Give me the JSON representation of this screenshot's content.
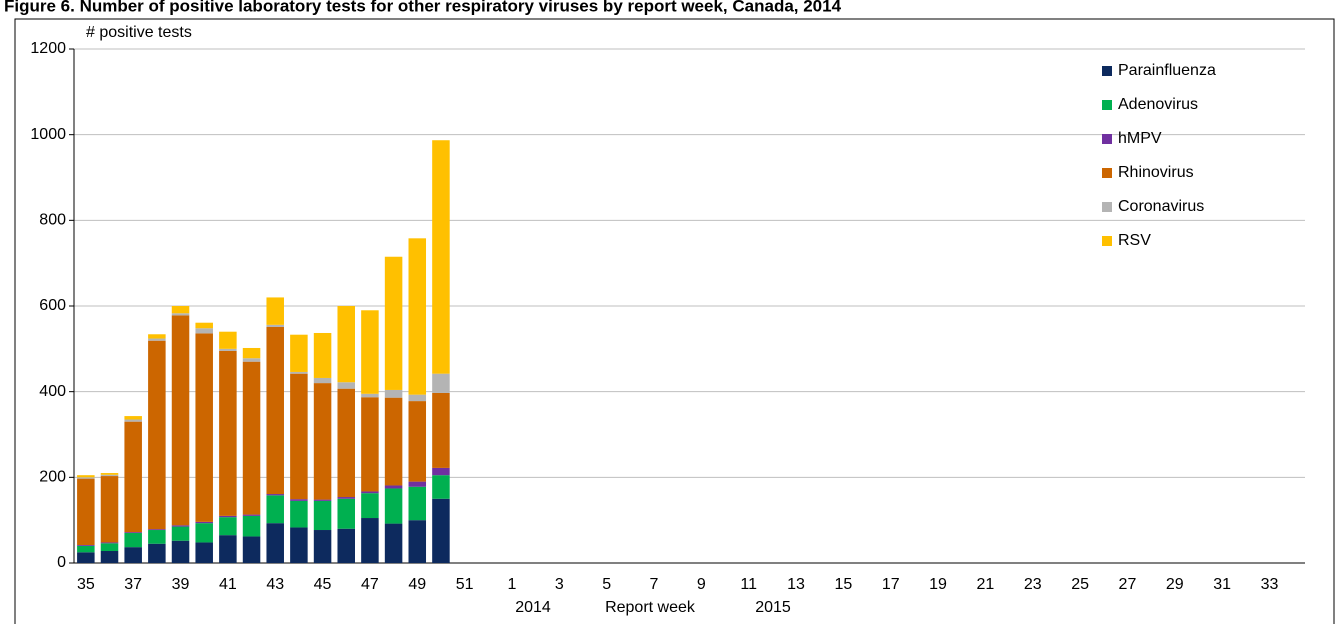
{
  "chart_data": {
    "type": "stacked-bar",
    "title": "Figure 6. Number of positive laboratory tests for other respiratory viruses by report week, Canada, 2014",
    "y_label": "# positive tests",
    "x_label": "Report week",
    "x_periods": [
      "2014",
      "2015"
    ],
    "categories": [
      "35",
      null,
      "37",
      null,
      "39",
      null,
      "41",
      null,
      "43",
      null,
      "45",
      null,
      "47",
      null,
      "49",
      null,
      "51",
      null,
      "1",
      null,
      "3",
      null,
      "5",
      null,
      "7",
      null,
      "9",
      null,
      "11",
      null,
      "13",
      null,
      "15",
      null,
      "17",
      null,
      "19",
      null,
      "21",
      null,
      "23",
      null,
      "25",
      null,
      "27",
      null,
      "29",
      null,
      "31",
      null,
      "33",
      null
    ],
    "series": [
      {
        "name": "Parainfluenza",
        "color": "#0d2a5e",
        "values": [
          25,
          28,
          37,
          45,
          52,
          48,
          65,
          62,
          93,
          83,
          77,
          80,
          105,
          92,
          100,
          150,
          null,
          null,
          null,
          null,
          null,
          null,
          null,
          null,
          null,
          null,
          null,
          null,
          null,
          null,
          null,
          null,
          null,
          null,
          null,
          null,
          null,
          null,
          null,
          null,
          null,
          null,
          null,
          null,
          null,
          null,
          null,
          null,
          null,
          null,
          null,
          null
        ]
      },
      {
        "name": "Adenovirus",
        "color": "#00b050",
        "values": [
          15,
          18,
          33,
          32,
          33,
          45,
          42,
          48,
          65,
          62,
          68,
          70,
          58,
          82,
          78,
          55,
          null,
          null,
          null,
          null,
          null,
          null,
          null,
          null,
          null,
          null,
          null,
          null,
          null,
          null,
          null,
          null,
          null,
          null,
          null,
          null,
          null,
          null,
          null,
          null,
          null,
          null,
          null,
          null,
          null,
          null,
          null,
          null,
          null,
          null,
          null,
          null
        ]
      },
      {
        "name": "hMPV",
        "color": "#7030a0",
        "values": [
          2,
          2,
          2,
          2,
          3,
          3,
          3,
          3,
          3,
          4,
          3,
          4,
          4,
          7,
          12,
          17,
          null,
          null,
          null,
          null,
          null,
          null,
          null,
          null,
          null,
          null,
          null,
          null,
          null,
          null,
          null,
          null,
          null,
          null,
          null,
          null,
          null,
          null,
          null,
          null,
          null,
          null,
          null,
          null,
          null,
          null,
          null,
          null,
          null,
          null,
          null,
          null
        ]
      },
      {
        "name": "Rhinovirus",
        "color": "#cc6600",
        "values": [
          155,
          155,
          258,
          440,
          490,
          440,
          385,
          357,
          390,
          293,
          272,
          253,
          220,
          205,
          188,
          175,
          null,
          null,
          null,
          null,
          null,
          null,
          null,
          null,
          null,
          null,
          null,
          null,
          null,
          null,
          null,
          null,
          null,
          null,
          null,
          null,
          null,
          null,
          null,
          null,
          null,
          null,
          null,
          null,
          null,
          null,
          null,
          null,
          null,
          null,
          null,
          null
        ]
      },
      {
        "name": "Coronavirus",
        "color": "#b4b4b4",
        "values": [
          3,
          3,
          5,
          5,
          5,
          12,
          5,
          8,
          5,
          4,
          12,
          15,
          8,
          18,
          15,
          45,
          null,
          null,
          null,
          null,
          null,
          null,
          null,
          null,
          null,
          null,
          null,
          null,
          null,
          null,
          null,
          null,
          null,
          null,
          null,
          null,
          null,
          null,
          null,
          null,
          null,
          null,
          null,
          null,
          null,
          null,
          null,
          null,
          null,
          null,
          null,
          null
        ]
      },
      {
        "name": "RSV",
        "color": "#ffc000",
        "values": [
          5,
          4,
          8,
          10,
          17,
          13,
          40,
          24,
          64,
          87,
          105,
          178,
          195,
          311,
          365,
          545,
          null,
          null,
          null,
          null,
          null,
          null,
          null,
          null,
          null,
          null,
          null,
          null,
          null,
          null,
          null,
          null,
          null,
          null,
          null,
          null,
          null,
          null,
          null,
          null,
          null,
          null,
          null,
          null,
          null,
          null,
          null,
          null,
          null,
          null,
          null,
          null
        ]
      }
    ],
    "ylim": [
      0,
      1200
    ],
    "yticks": [
      0,
      200,
      400,
      600,
      800,
      1000,
      1200
    ],
    "grid": true,
    "legend": "top-right"
  }
}
